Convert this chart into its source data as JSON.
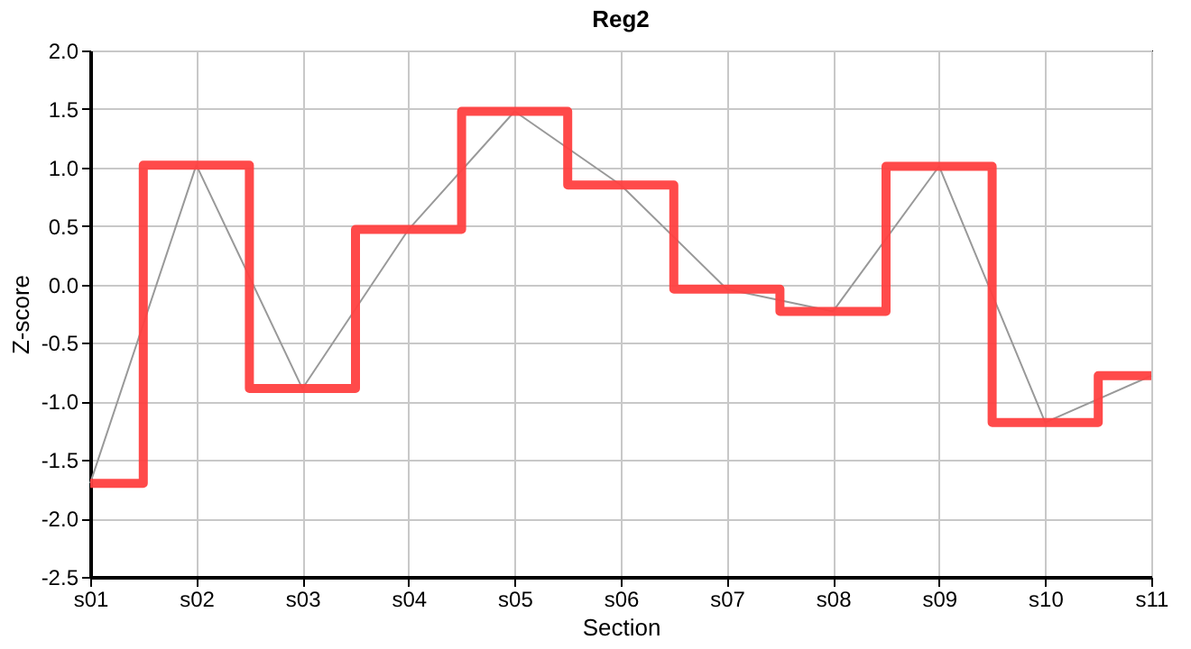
{
  "chart_data": {
    "type": "step",
    "title": "Reg2",
    "xlabel": "Section",
    "ylabel": "Z-score",
    "categories": [
      "s01",
      "s02",
      "s03",
      "s04",
      "s05",
      "s06",
      "s07",
      "s08",
      "s09",
      "s10",
      "s11"
    ],
    "series": [
      {
        "type": "line",
        "color": "#999999",
        "values": [
          -1.7,
          1.02,
          -0.89,
          0.47,
          1.48,
          0.85,
          -0.04,
          -0.23,
          1.01,
          -1.18,
          -0.78
        ]
      },
      {
        "type": "step",
        "color": "#ff4040",
        "values": [
          -1.7,
          1.02,
          -0.89,
          0.47,
          1.48,
          0.85,
          -0.04,
          -0.23,
          1.01,
          -1.18,
          -0.78
        ]
      }
    ],
    "ylim": [
      -2.5,
      2.0
    ],
    "yticks": [
      {
        "value": -2.5,
        "label": "-2.5"
      },
      {
        "value": -2,
        "label": "-2.0"
      },
      {
        "value": -1.5,
        "label": "-1.5"
      },
      {
        "value": -1,
        "label": "-1.0"
      },
      {
        "value": -0.5,
        "label": "-0.5"
      },
      {
        "value": 0,
        "label": "0.0"
      },
      {
        "value": 0.5,
        "label": "0.5"
      },
      {
        "value": 1,
        "label": "1.0"
      },
      {
        "value": 1.5,
        "label": "1.5"
      },
      {
        "value": 2,
        "label": "2.0"
      }
    ],
    "grid": true
  }
}
